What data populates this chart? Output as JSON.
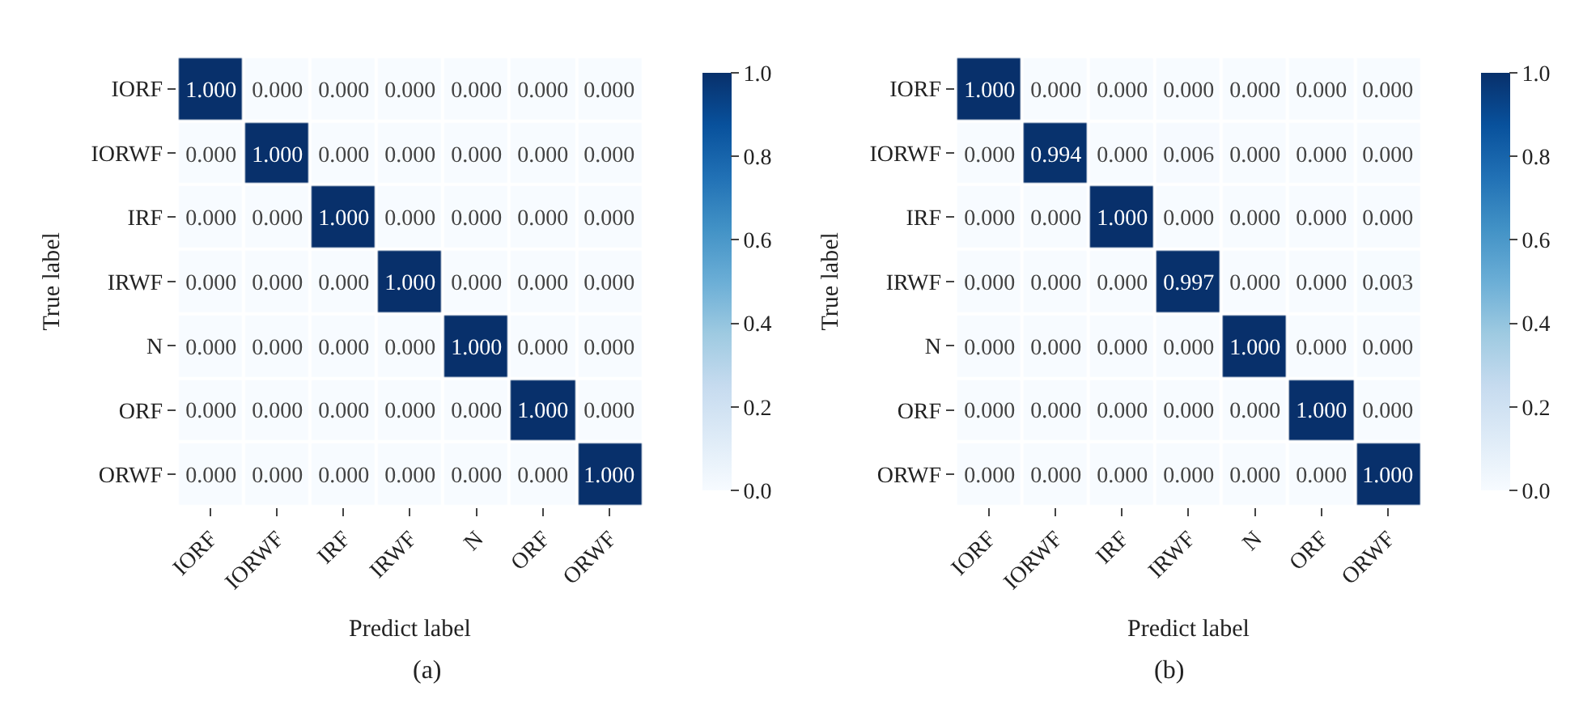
{
  "chart_data": [
    {
      "type": "heatmap",
      "categories": [
        "IORF",
        "IORWF",
        "IRF",
        "IRWF",
        "N",
        "ORF",
        "ORWF"
      ],
      "y_categories": [
        "IORF",
        "IORWF",
        "IRF",
        "IRWF",
        "N",
        "ORF",
        "ORWF"
      ],
      "cells": [
        [
          1.0,
          0.0,
          0.0,
          0.0,
          0.0,
          0.0,
          0.0
        ],
        [
          0.0,
          1.0,
          0.0,
          0.0,
          0.0,
          0.0,
          0.0
        ],
        [
          0.0,
          0.0,
          1.0,
          0.0,
          0.0,
          0.0,
          0.0
        ],
        [
          0.0,
          0.0,
          0.0,
          1.0,
          0.0,
          0.0,
          0.0
        ],
        [
          0.0,
          0.0,
          0.0,
          0.0,
          1.0,
          0.0,
          0.0
        ],
        [
          0.0,
          0.0,
          0.0,
          0.0,
          0.0,
          1.0,
          0.0
        ],
        [
          0.0,
          0.0,
          0.0,
          0.0,
          0.0,
          0.0,
          1.0
        ]
      ],
      "cell_labels": [
        [
          "1.000",
          "0.000",
          "0.000",
          "0.000",
          "0.000",
          "0.000",
          "0.000"
        ],
        [
          "0.000",
          "1.000",
          "0.000",
          "0.000",
          "0.000",
          "0.000",
          "0.000"
        ],
        [
          "0.000",
          "0.000",
          "1.000",
          "0.000",
          "0.000",
          "0.000",
          "0.000"
        ],
        [
          "0.000",
          "0.000",
          "0.000",
          "1.000",
          "0.000",
          "0.000",
          "0.000"
        ],
        [
          "0.000",
          "0.000",
          "0.000",
          "0.000",
          "1.000",
          "0.000",
          "0.000"
        ],
        [
          "0.000",
          "0.000",
          "0.000",
          "0.000",
          "0.000",
          "1.000",
          "0.000"
        ],
        [
          "0.000",
          "0.000",
          "0.000",
          "0.000",
          "0.000",
          "0.000",
          "1.000"
        ]
      ],
      "clim": [
        0,
        1
      ],
      "cticks": [
        {
          "value": 0,
          "label": "0.0"
        },
        {
          "value": 0.2,
          "label": "0.2"
        },
        {
          "value": 0.4,
          "label": "0.4"
        },
        {
          "value": 0.6,
          "label": "0.6"
        },
        {
          "value": 0.8,
          "label": "0.8"
        },
        {
          "value": 1,
          "label": "1.0"
        }
      ],
      "xlabel": "Predict label",
      "ylabel": "True label",
      "annotations": [
        "(a)"
      ]
    },
    {
      "type": "heatmap",
      "categories": [
        "IORF",
        "IORWF",
        "IRF",
        "IRWF",
        "N",
        "ORF",
        "ORWF"
      ],
      "y_categories": [
        "IORF",
        "IORWF",
        "IRF",
        "IRWF",
        "N",
        "ORF",
        "ORWF"
      ],
      "cells": [
        [
          1.0,
          0.0,
          0.0,
          0.0,
          0.0,
          0.0,
          0.0
        ],
        [
          0.0,
          0.994,
          0.0,
          0.006,
          0.0,
          0.0,
          0.0
        ],
        [
          0.0,
          0.0,
          1.0,
          0.0,
          0.0,
          0.0,
          0.0
        ],
        [
          0.0,
          0.0,
          0.0,
          0.997,
          0.0,
          0.0,
          0.003
        ],
        [
          0.0,
          0.0,
          0.0,
          0.0,
          1.0,
          0.0,
          0.0
        ],
        [
          0.0,
          0.0,
          0.0,
          0.0,
          0.0,
          1.0,
          0.0
        ],
        [
          0.0,
          0.0,
          0.0,
          0.0,
          0.0,
          0.0,
          1.0
        ]
      ],
      "cell_labels": [
        [
          "1.000",
          "0.000",
          "0.000",
          "0.000",
          "0.000",
          "0.000",
          "0.000"
        ],
        [
          "0.000",
          "0.994",
          "0.000",
          "0.006",
          "0.000",
          "0.000",
          "0.000"
        ],
        [
          "0.000",
          "0.000",
          "1.000",
          "0.000",
          "0.000",
          "0.000",
          "0.000"
        ],
        [
          "0.000",
          "0.000",
          "0.000",
          "0.997",
          "0.000",
          "0.000",
          "0.003"
        ],
        [
          "0.000",
          "0.000",
          "0.000",
          "0.000",
          "1.000",
          "0.000",
          "0.000"
        ],
        [
          "0.000",
          "0.000",
          "0.000",
          "0.000",
          "0.000",
          "1.000",
          "0.000"
        ],
        [
          "0.000",
          "0.000",
          "0.000",
          "0.000",
          "0.000",
          "0.000",
          "1.000"
        ]
      ],
      "clim": [
        0,
        1
      ],
      "cticks": [
        {
          "value": 0,
          "label": "0.0"
        },
        {
          "value": 0.2,
          "label": "0.2"
        },
        {
          "value": 0.4,
          "label": "0.4"
        },
        {
          "value": 0.6,
          "label": "0.6"
        },
        {
          "value": 0.8,
          "label": "0.8"
        },
        {
          "value": 1,
          "label": "1.0"
        }
      ],
      "xlabel": "Predict label",
      "ylabel": "True label",
      "annotations": [
        "(b)"
      ]
    }
  ]
}
